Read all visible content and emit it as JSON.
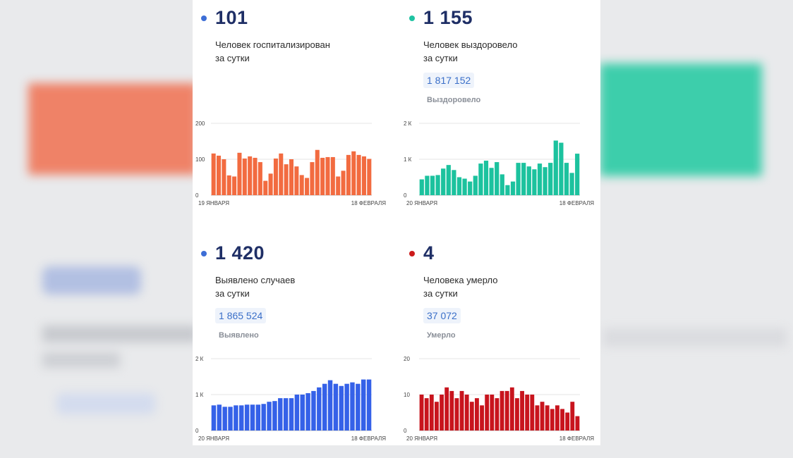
{
  "cards": [
    {
      "id": "hospitalized",
      "big_value": "101",
      "caption_lines": [
        "Человек госпитализирован",
        "за сутки"
      ],
      "total": null,
      "total_label": null,
      "dot_color": "#3d6ed6",
      "bar_color": "#f26b40"
    },
    {
      "id": "recovered",
      "big_value": "1 155",
      "caption_lines": [
        "Человек выздоровело",
        "за сутки"
      ],
      "total": "1 817 152",
      "total_label": "Выздоровело",
      "dot_color": "#1fc3a2",
      "bar_color": "#1cc29e"
    },
    {
      "id": "cases",
      "big_value": "1 420",
      "caption_lines": [
        "Выявлено случаев",
        "за сутки"
      ],
      "total": "1 865 524",
      "total_label": "Выявлено",
      "dot_color": "#3d6ed6",
      "bar_color": "#3561e8"
    },
    {
      "id": "deaths",
      "big_value": "4",
      "caption_lines": [
        "Человека умерло",
        "за сутки"
      ],
      "total": "37 072",
      "total_label": "Умерло",
      "dot_color": "#cc1b1b",
      "bar_color": "#c8141d"
    }
  ],
  "chart_data": [
    {
      "type": "bar",
      "series_ref": "hospitalized",
      "x_start_label": "19 ЯНВАРЯ",
      "x_end_label": "18 ФЕВРАЛЯ",
      "y_ticks": [
        {
          "value": 0,
          "label": "0"
        },
        {
          "value": 100,
          "label": "100"
        },
        {
          "value": 200,
          "label": "200"
        }
      ],
      "ylim": [
        0,
        200
      ],
      "values": [
        116,
        110,
        100,
        55,
        52,
        118,
        102,
        108,
        104,
        92,
        40,
        60,
        102,
        116,
        86,
        100,
        80,
        56,
        48,
        92,
        126,
        104,
        106,
        106,
        52,
        68,
        112,
        122,
        112,
        108,
        101
      ],
      "grid": true
    },
    {
      "type": "bar",
      "series_ref": "recovered",
      "x_start_label": "20 ЯНВАРЯ",
      "x_end_label": "18 ФЕВРАЛЯ",
      "y_ticks": [
        {
          "value": 0,
          "label": "0"
        },
        {
          "value": 1000,
          "label": "1 К"
        },
        {
          "value": 2000,
          "label": "2 К"
        }
      ],
      "ylim": [
        0,
        2000
      ],
      "values": [
        440,
        540,
        540,
        560,
        740,
        840,
        700,
        500,
        460,
        380,
        540,
        880,
        960,
        760,
        920,
        580,
        280,
        380,
        900,
        900,
        800,
        720,
        880,
        780,
        900,
        1520,
        1460,
        900,
        620,
        1155
      ],
      "grid": true
    },
    {
      "type": "bar",
      "series_ref": "cases",
      "x_start_label": "20 ЯНВАРЯ",
      "x_end_label": "18 ФЕВРАЛЯ",
      "y_ticks": [
        {
          "value": 0,
          "label": "0"
        },
        {
          "value": 1000,
          "label": "1 К"
        },
        {
          "value": 2000,
          "label": "2 К"
        }
      ],
      "ylim": [
        0,
        2000
      ],
      "values": [
        700,
        720,
        660,
        660,
        700,
        700,
        720,
        720,
        720,
        740,
        800,
        820,
        900,
        900,
        900,
        1000,
        1000,
        1040,
        1100,
        1200,
        1300,
        1400,
        1300,
        1240,
        1300,
        1340,
        1300,
        1420,
        1420
      ],
      "grid": true
    },
    {
      "type": "bar",
      "series_ref": "deaths",
      "x_start_label": "20 ЯНВАРЯ",
      "x_end_label": "18 ФЕВРАЛЯ",
      "y_ticks": [
        {
          "value": 0,
          "label": "0"
        },
        {
          "value": 10,
          "label": "10"
        },
        {
          "value": 20,
          "label": "20"
        }
      ],
      "ylim": [
        0,
        20
      ],
      "values": [
        10,
        9,
        10,
        8,
        10,
        12,
        11,
        9,
        11,
        10,
        8,
        9,
        7,
        10,
        10,
        9,
        11,
        11,
        12,
        9,
        11,
        10,
        10,
        7,
        8,
        7,
        6,
        7,
        6,
        5,
        8,
        4
      ],
      "grid": true
    }
  ]
}
